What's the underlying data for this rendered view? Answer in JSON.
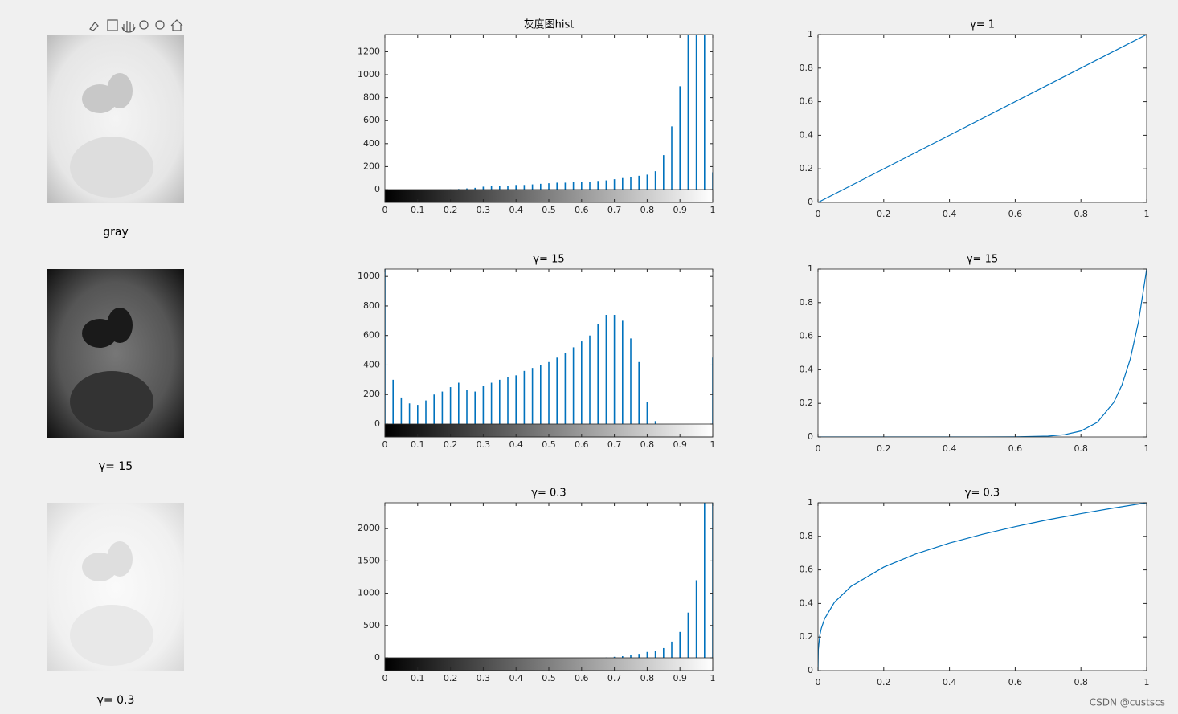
{
  "chart_data": [
    {
      "type": "image",
      "xlabel": "gray"
    },
    {
      "type": "bar",
      "title": "灰度图hist",
      "color": "#0072bd",
      "x": [
        0,
        0.025,
        0.05,
        0.075,
        0.1,
        0.125,
        0.15,
        0.175,
        0.2,
        0.225,
        0.25,
        0.275,
        0.3,
        0.325,
        0.35,
        0.375,
        0.4,
        0.425,
        0.45,
        0.475,
        0.5,
        0.525,
        0.55,
        0.575,
        0.6,
        0.625,
        0.65,
        0.675,
        0.7,
        0.725,
        0.75,
        0.775,
        0.8,
        0.825,
        0.85,
        0.875,
        0.9,
        0.925,
        0.95,
        0.975,
        1
      ],
      "values": [
        0,
        0,
        0,
        0,
        0,
        0,
        0,
        0,
        2,
        5,
        10,
        15,
        25,
        30,
        35,
        35,
        40,
        40,
        45,
        50,
        55,
        60,
        60,
        65,
        65,
        70,
        75,
        80,
        90,
        100,
        110,
        120,
        130,
        160,
        300,
        550,
        900,
        1350,
        1350,
        1350,
        150
      ],
      "xlim": [
        0,
        1
      ],
      "xticks": [
        0,
        0.1,
        0.2,
        0.3,
        0.4,
        0.5,
        0.6,
        0.7,
        0.8,
        0.9,
        1
      ],
      "ylim": [
        0,
        1350
      ],
      "yticks": [
        0,
        200,
        400,
        600,
        800,
        1000,
        1200
      ]
    },
    {
      "type": "line",
      "title": "γ= 1",
      "color": "#0072bd",
      "x": [
        0,
        1
      ],
      "values": [
        0,
        1
      ],
      "xlim": [
        0,
        1
      ],
      "xticks": [
        0,
        0.2,
        0.4,
        0.6,
        0.8,
        1
      ],
      "ylim": [
        0,
        1
      ],
      "yticks": [
        0,
        0.2,
        0.4,
        0.6,
        0.8,
        1
      ]
    },
    {
      "type": "image",
      "xlabel": "γ= 15"
    },
    {
      "type": "bar",
      "title": "γ= 15",
      "color": "#0072bd",
      "x": [
        0,
        0.025,
        0.05,
        0.075,
        0.1,
        0.125,
        0.15,
        0.175,
        0.2,
        0.225,
        0.25,
        0.275,
        0.3,
        0.325,
        0.35,
        0.375,
        0.4,
        0.425,
        0.45,
        0.475,
        0.5,
        0.525,
        0.55,
        0.575,
        0.6,
        0.625,
        0.65,
        0.675,
        0.7,
        0.725,
        0.75,
        0.775,
        0.8,
        0.825,
        0.85,
        0.875,
        0.9,
        0.925,
        0.95,
        0.975,
        1
      ],
      "values": [
        1050,
        300,
        180,
        140,
        130,
        160,
        200,
        220,
        250,
        280,
        230,
        220,
        260,
        280,
        300,
        320,
        330,
        360,
        380,
        400,
        420,
        450,
        480,
        520,
        560,
        600,
        680,
        740,
        740,
        700,
        580,
        420,
        150,
        20,
        0,
        0,
        0,
        0,
        0,
        0,
        450
      ],
      "xlim": [
        0,
        1
      ],
      "xticks": [
        0,
        0.1,
        0.2,
        0.3,
        0.4,
        0.5,
        0.6,
        0.7,
        0.8,
        0.9,
        1
      ],
      "ylim": [
        0,
        1050
      ],
      "yticks": [
        0,
        200,
        400,
        600,
        800,
        1000
      ]
    },
    {
      "type": "line",
      "title": "γ= 15",
      "color": "#0072bd",
      "x": [
        0,
        0.5,
        0.6,
        0.7,
        0.75,
        0.8,
        0.85,
        0.9,
        0.925,
        0.95,
        0.975,
        1
      ],
      "values": [
        0,
        3e-05,
        0.00047,
        0.0047,
        0.0134,
        0.0352,
        0.0874,
        0.2059,
        0.3105,
        0.4633,
        0.684,
        1
      ],
      "xlim": [
        0,
        1
      ],
      "xticks": [
        0,
        0.2,
        0.4,
        0.6,
        0.8,
        1
      ],
      "ylim": [
        0,
        1
      ],
      "yticks": [
        0,
        0.2,
        0.4,
        0.6,
        0.8,
        1
      ]
    },
    {
      "type": "image",
      "xlabel": "γ= 0.3"
    },
    {
      "type": "bar",
      "title": "γ= 0.3",
      "color": "#0072bd",
      "x": [
        0,
        0.025,
        0.05,
        0.075,
        0.1,
        0.125,
        0.15,
        0.175,
        0.2,
        0.225,
        0.25,
        0.275,
        0.3,
        0.325,
        0.35,
        0.375,
        0.4,
        0.425,
        0.45,
        0.475,
        0.5,
        0.525,
        0.55,
        0.575,
        0.6,
        0.625,
        0.65,
        0.675,
        0.7,
        0.725,
        0.75,
        0.775,
        0.8,
        0.825,
        0.85,
        0.875,
        0.9,
        0.925,
        0.95,
        0.975,
        1
      ],
      "values": [
        0,
        0,
        0,
        0,
        0,
        0,
        0,
        0,
        0,
        0,
        0,
        0,
        0,
        0,
        0,
        0,
        0,
        0,
        0,
        0,
        0,
        0,
        0,
        0,
        0,
        0,
        0,
        5,
        15,
        25,
        40,
        60,
        90,
        110,
        150,
        250,
        400,
        700,
        1200,
        2400,
        2400
      ],
      "xlim": [
        0,
        1
      ],
      "xticks": [
        0,
        0.1,
        0.2,
        0.3,
        0.4,
        0.5,
        0.6,
        0.7,
        0.8,
        0.9,
        1
      ],
      "ylim": [
        0,
        2400
      ],
      "yticks": [
        0,
        500,
        1000,
        1500,
        2000
      ]
    },
    {
      "type": "line",
      "title": "γ= 0.3",
      "color": "#0072bd",
      "x": [
        0,
        0.001,
        0.005,
        0.01,
        0.02,
        0.05,
        0.1,
        0.2,
        0.3,
        0.4,
        0.5,
        0.6,
        0.7,
        0.8,
        0.9,
        1
      ],
      "values": [
        0,
        0.126,
        0.204,
        0.251,
        0.309,
        0.407,
        0.501,
        0.617,
        0.697,
        0.76,
        0.812,
        0.858,
        0.899,
        0.935,
        0.969,
        1
      ],
      "xlim": [
        0,
        1
      ],
      "xticks": [
        0,
        0.2,
        0.4,
        0.6,
        0.8,
        1
      ],
      "ylim": [
        0,
        1
      ],
      "yticks": [
        0,
        0.2,
        0.4,
        0.6,
        0.8,
        1
      ]
    }
  ],
  "watermark": "CSDN @custscs"
}
